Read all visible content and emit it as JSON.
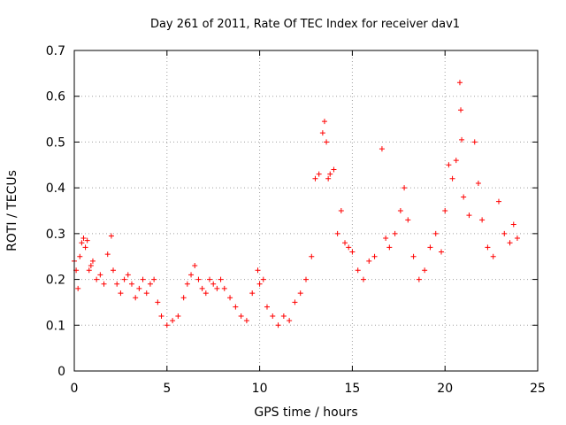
{
  "chart_data": {
    "type": "scatter",
    "title": "Day 261 of 2011, Rate Of TEC Index for receiver dav1",
    "xlabel": "GPS time / hours",
    "ylabel": "ROTI / TECUs",
    "xlim": [
      0,
      25
    ],
    "ylim": [
      0,
      0.7
    ],
    "xticks": [
      0,
      5,
      10,
      15,
      20,
      25
    ],
    "xtick_labels": [
      "0",
      "5",
      "10",
      "15",
      "20",
      "25"
    ],
    "yticks": [
      0,
      0.1,
      0.2,
      0.3,
      0.4,
      0.5,
      0.6,
      0.7
    ],
    "ytick_labels": [
      "0",
      "0.1",
      "0.2",
      "0.3",
      "0.4",
      "0.5",
      "0.6",
      "0.7"
    ],
    "grid": true,
    "marker": "+",
    "color": "#ff0000",
    "series": [
      {
        "name": "ROTI",
        "points": [
          [
            0.0,
            0.24
          ],
          [
            0.1,
            0.22
          ],
          [
            0.2,
            0.18
          ],
          [
            0.3,
            0.25
          ],
          [
            0.4,
            0.28
          ],
          [
            0.5,
            0.29
          ],
          [
            0.6,
            0.27
          ],
          [
            0.7,
            0.285
          ],
          [
            0.8,
            0.22
          ],
          [
            0.9,
            0.23
          ],
          [
            1.0,
            0.24
          ],
          [
            1.2,
            0.2
          ],
          [
            1.4,
            0.21
          ],
          [
            1.6,
            0.19
          ],
          [
            1.8,
            0.255
          ],
          [
            2.0,
            0.295
          ],
          [
            2.1,
            0.22
          ],
          [
            2.3,
            0.19
          ],
          [
            2.5,
            0.17
          ],
          [
            2.7,
            0.2
          ],
          [
            2.9,
            0.21
          ],
          [
            3.1,
            0.19
          ],
          [
            3.3,
            0.16
          ],
          [
            3.5,
            0.18
          ],
          [
            3.7,
            0.2
          ],
          [
            3.9,
            0.17
          ],
          [
            4.1,
            0.19
          ],
          [
            4.3,
            0.2
          ],
          [
            4.5,
            0.15
          ],
          [
            4.7,
            0.12
          ],
          [
            5.0,
            0.1
          ],
          [
            5.3,
            0.11
          ],
          [
            5.6,
            0.12
          ],
          [
            5.9,
            0.16
          ],
          [
            6.1,
            0.19
          ],
          [
            6.3,
            0.21
          ],
          [
            6.5,
            0.23
          ],
          [
            6.7,
            0.2
          ],
          [
            6.9,
            0.18
          ],
          [
            7.1,
            0.17
          ],
          [
            7.3,
            0.2
          ],
          [
            7.5,
            0.19
          ],
          [
            7.7,
            0.18
          ],
          [
            7.9,
            0.2
          ],
          [
            8.1,
            0.18
          ],
          [
            8.4,
            0.16
          ],
          [
            8.7,
            0.14
          ],
          [
            9.0,
            0.12
          ],
          [
            9.3,
            0.11
          ],
          [
            9.6,
            0.17
          ],
          [
            9.9,
            0.22
          ],
          [
            10.0,
            0.19
          ],
          [
            10.2,
            0.2
          ],
          [
            10.4,
            0.14
          ],
          [
            10.7,
            0.12
          ],
          [
            11.0,
            0.1
          ],
          [
            11.3,
            0.12
          ],
          [
            11.6,
            0.11
          ],
          [
            11.9,
            0.15
          ],
          [
            12.2,
            0.17
          ],
          [
            12.5,
            0.2
          ],
          [
            12.8,
            0.25
          ],
          [
            13.0,
            0.42
          ],
          [
            13.2,
            0.43
          ],
          [
            13.4,
            0.52
          ],
          [
            13.5,
            0.545
          ],
          [
            13.6,
            0.5
          ],
          [
            13.7,
            0.42
          ],
          [
            13.8,
            0.43
          ],
          [
            14.0,
            0.44
          ],
          [
            14.2,
            0.3
          ],
          [
            14.4,
            0.35
          ],
          [
            14.6,
            0.28
          ],
          [
            14.8,
            0.27
          ],
          [
            15.0,
            0.26
          ],
          [
            15.3,
            0.22
          ],
          [
            15.6,
            0.2
          ],
          [
            15.9,
            0.24
          ],
          [
            16.2,
            0.25
          ],
          [
            16.6,
            0.485
          ],
          [
            16.8,
            0.29
          ],
          [
            17.0,
            0.27
          ],
          [
            17.3,
            0.3
          ],
          [
            17.6,
            0.35
          ],
          [
            17.8,
            0.4
          ],
          [
            18.0,
            0.33
          ],
          [
            18.3,
            0.25
          ],
          [
            18.6,
            0.2
          ],
          [
            18.9,
            0.22
          ],
          [
            19.2,
            0.27
          ],
          [
            19.5,
            0.3
          ],
          [
            19.8,
            0.26
          ],
          [
            20.0,
            0.35
          ],
          [
            20.2,
            0.45
          ],
          [
            20.4,
            0.42
          ],
          [
            20.6,
            0.46
          ],
          [
            20.8,
            0.63
          ],
          [
            20.85,
            0.57
          ],
          [
            20.9,
            0.505
          ],
          [
            21.0,
            0.38
          ],
          [
            21.3,
            0.34
          ],
          [
            21.6,
            0.5
          ],
          [
            21.8,
            0.41
          ],
          [
            22.0,
            0.33
          ],
          [
            22.3,
            0.27
          ],
          [
            22.6,
            0.25
          ],
          [
            22.9,
            0.37
          ],
          [
            23.2,
            0.3
          ],
          [
            23.5,
            0.28
          ],
          [
            23.7,
            0.32
          ],
          [
            23.9,
            0.29
          ]
        ]
      }
    ]
  }
}
